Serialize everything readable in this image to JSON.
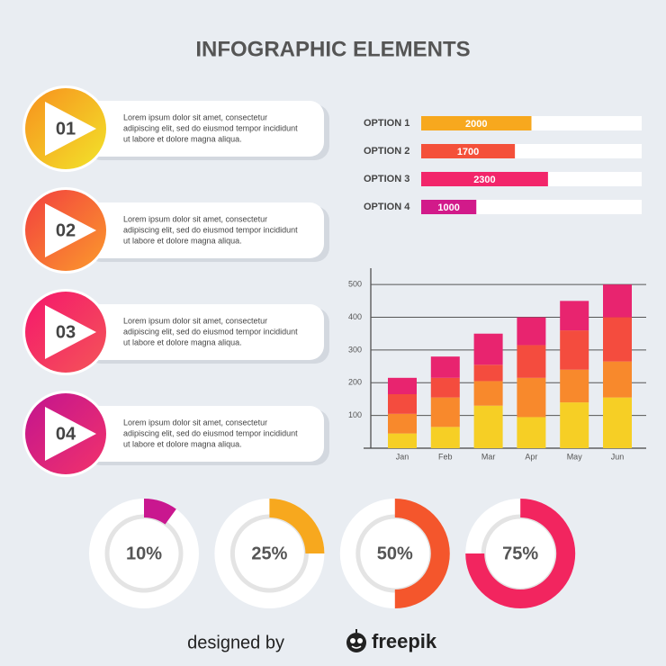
{
  "title": "INFOGRAPHIC ELEMENTS",
  "steps": [
    {
      "number": "01",
      "lines": [
        "Lorem ipsum dolor sit amet, consectetur",
        "adipiscing elit, sed do eiusmod tempor incididunt",
        "ut labore et dolore magna aliqua."
      ]
    },
    {
      "number": "02",
      "lines": [
        "Lorem ipsum dolor sit amet, consectetur",
        "adipiscing elit, sed do eiusmod tempor incididunt",
        "ut labore et dolore magna aliqua."
      ]
    },
    {
      "number": "03",
      "lines": [
        "Lorem ipsum dolor sit amet, consectetur",
        "adipiscing elit, sed do eiusmod tempor incididunt",
        "ut labore et dolore magna aliqua."
      ]
    },
    {
      "number": "04",
      "lines": [
        "Lorem ipsum dolor sit amet, consectetur",
        "adipiscing elit, sed do eiusmod tempor incididunt",
        "ut labore et dolore magna aliqua."
      ]
    }
  ],
  "chart_data": [
    {
      "type": "hbar",
      "categories": [
        "OPTION 1",
        "OPTION 2",
        "OPTION 3",
        "OPTION 4"
      ],
      "values": [
        2000,
        1700,
        2300,
        1000
      ],
      "colors": [
        "#f7a81e",
        "#f4503a",
        "#f2256a",
        "#d21a8a"
      ],
      "xlim": [
        0,
        4000
      ]
    },
    {
      "type": "stacked_bar",
      "categories": [
        "Jan",
        "Feb",
        "Mar",
        "Apr",
        "May",
        "Jun"
      ],
      "series": [
        {
          "color": "#f6cf25",
          "values": [
            45,
            65,
            130,
            95,
            140,
            155
          ]
        },
        {
          "color": "#f8892c",
          "values": [
            60,
            90,
            75,
            120,
            100,
            110
          ]
        },
        {
          "color": "#f44c3e",
          "values": [
            60,
            60,
            50,
            100,
            120,
            135
          ]
        },
        {
          "color": "#e8246f",
          "values": [
            50,
            65,
            95,
            85,
            90,
            100
          ]
        }
      ],
      "ylim": [
        0,
        550
      ],
      "yticks": [
        100,
        200,
        300,
        400,
        500
      ],
      "grid": true
    },
    {
      "type": "donut",
      "values": [
        10,
        25,
        50,
        75
      ],
      "value_labels": [
        "10%",
        "25%",
        "50%",
        "75%"
      ],
      "colors": [
        "#c9178f",
        "#f7a81e",
        "#f4562c",
        "#f2255f"
      ]
    }
  ],
  "footer": {
    "text": "designed by",
    "brand": "freepik"
  }
}
